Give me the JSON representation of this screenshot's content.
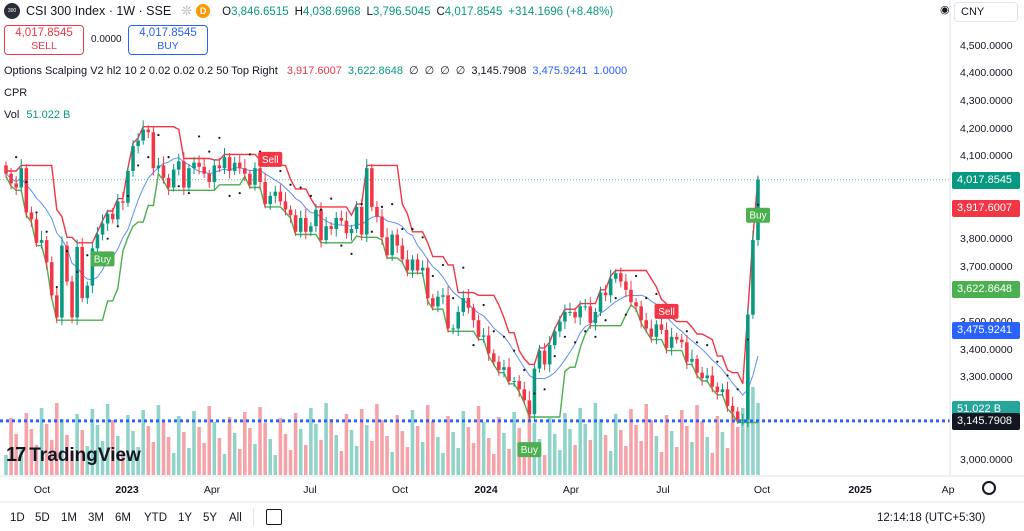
{
  "header": {
    "logo_text": "300",
    "title": "CSI 300 Index · 1W · SSE",
    "flag_glyph": "❊",
    "d_badge": "D",
    "ohlc": [
      {
        "k": "O",
        "v": "3,846.6515"
      },
      {
        "k": "H",
        "v": "4,038.6968"
      },
      {
        "k": "L",
        "v": "3,796.5045"
      },
      {
        "k": "C",
        "v": "4,017.8545"
      },
      {
        "k": "",
        "v": "+314.1696 (+8.48%)"
      }
    ]
  },
  "trade": {
    "sell_price": "4,017.8545",
    "sell_label": "SELL",
    "spread": "0.0000",
    "buy_price": "4,017.8545",
    "buy_label": "BUY"
  },
  "indicators": {
    "scalping_name": "Options Scalping V2 hl2 10 2 0.02 0.02 0.2 50 Top Right",
    "scalping_values": [
      {
        "v": "3,917.6007",
        "color": "#f23645"
      },
      {
        "v": "3,622.8648",
        "color": "#089981"
      },
      {
        "v": "∅",
        "color": "#131722"
      },
      {
        "v": "∅",
        "color": "#131722"
      },
      {
        "v": "∅",
        "color": "#131722"
      },
      {
        "v": "∅",
        "color": "#131722"
      },
      {
        "v": "3,145.7908",
        "color": "#131722"
      },
      {
        "v": "3,475.9241",
        "color": "#2962ff"
      },
      {
        "v": "1.0000",
        "color": "#2962ff"
      }
    ],
    "cpr_label": "CPR",
    "vol_label": "Vol",
    "vol_value": "51.022 B"
  },
  "currency": "CNY",
  "eye_glyph": "◉",
  "y_axis": {
    "min": 2950,
    "max": 4560,
    "ticks": [
      "4,500.0000",
      "4,400.0000",
      "4,300.0000",
      "4,200.0000",
      "4,100.0000",
      "3,900.0000",
      "3,800.0000",
      "3,700.0000",
      "3,500.0000",
      "3,400.0000",
      "3,300.0000",
      "3,200.0000",
      "3,000.0000"
    ],
    "tick_values": [
      4500,
      4400,
      4300,
      4200,
      4100,
      3900,
      3800,
      3700,
      3500,
      3400,
      3300,
      3200,
      3000
    ]
  },
  "price_tags": [
    {
      "label": "4,017.8545",
      "value": 4017.85,
      "bg": "#089981"
    },
    {
      "label": "3,917.6007",
      "value": 3917.6,
      "bg": "#f23645"
    },
    {
      "label": "3,622.8648",
      "value": 3622.86,
      "bg": "#4caf50"
    },
    {
      "label": "3,475.9241",
      "value": 3475.92,
      "bg": "#2962ff"
    },
    {
      "label": "51.022 B",
      "value": 3190,
      "bg": "#26a69a"
    },
    {
      "label": "3,145.7908",
      "value": 3145.79,
      "bg": "#131722"
    }
  ],
  "x_axis": [
    {
      "label": "Oct",
      "bold": false
    },
    {
      "label": "2023",
      "bold": true
    },
    {
      "label": "Apr",
      "bold": false
    },
    {
      "label": "Jul",
      "bold": false
    },
    {
      "label": "Oct",
      "bold": false
    },
    {
      "label": "2024",
      "bold": true
    },
    {
      "label": "Apr",
      "bold": false
    },
    {
      "label": "Jul",
      "bold": false
    },
    {
      "label": "Oct",
      "bold": false
    },
    {
      "label": "2025",
      "bold": true
    },
    {
      "label": "Ap",
      "bold": false
    }
  ],
  "signals": [
    {
      "type": "Buy",
      "bar": 19
    },
    {
      "type": "Sell",
      "bar": 52
    },
    {
      "type": "Buy",
      "bar": 103
    },
    {
      "type": "Sell",
      "bar": 130
    },
    {
      "type": "Buy",
      "bar": 148
    }
  ],
  "timeframes": [
    "1D",
    "5D",
    "1M",
    "3M",
    "6M",
    "YTD",
    "1Y",
    "5Y",
    "All"
  ],
  "clock": "12:14:18 (UTC+5:30)",
  "brand": "TradingView",
  "colors": {
    "up": "#089981",
    "down": "#f23645",
    "vol_up": "#8fd3c9",
    "vol_down": "#f5a3a8",
    "ma": "#5b8ff9",
    "sar": "#131722",
    "bear_band": "#f23645",
    "bull_band": "#4caf50"
  },
  "chart_data": {
    "type": "candlestick",
    "title": "CSI 300 Index · 1W · SSE",
    "x": "weekly bars, Sep 2022 – Sep 2024",
    "closes": [
      4040,
      4005,
      3990,
      4060,
      3900,
      3875,
      3790,
      3800,
      3720,
      3600,
      3520,
      3780,
      3650,
      3520,
      3775,
      3590,
      3635,
      3770,
      3820,
      3860,
      3895,
      3875,
      3940,
      3935,
      4050,
      4140,
      4160,
      4200,
      4190,
      4060,
      4070,
      4025,
      3990,
      4055,
      4085,
      3990,
      4060,
      4080,
      4065,
      4040,
      4010,
      4070,
      4060,
      4100,
      4050,
      4080,
      4060,
      4040,
      4000,
      4060,
      4010,
      3930,
      3960,
      3975,
      3940,
      3910,
      3890,
      3830,
      3880,
      3830,
      3850,
      3910,
      3800,
      3850,
      3840,
      3880,
      3870,
      3825,
      3840,
      3920,
      3820,
      4060,
      3920,
      3885,
      3810,
      3745,
      3820,
      3780,
      3730,
      3690,
      3730,
      3690,
      3700,
      3590,
      3560,
      3595,
      3600,
      3480,
      3480,
      3540,
      3590,
      3555,
      3510,
      3450,
      3455,
      3390,
      3360,
      3330,
      3340,
      3290,
      3290,
      3260,
      3220,
      3170,
      3335,
      3400,
      3350,
      3420,
      3470,
      3505,
      3540,
      3540,
      3520,
      3560,
      3560,
      3500,
      3540,
      3610,
      3600,
      3660,
      3680,
      3650,
      3620,
      3575,
      3560,
      3510,
      3480,
      3450,
      3495,
      3475,
      3410,
      3450,
      3440,
      3430,
      3360,
      3370,
      3320,
      3300,
      3310,
      3270,
      3250,
      3260,
      3200,
      3180,
      3150,
      3150,
      3530,
      3800,
      4018
    ],
    "ylim": [
      2950,
      4560
    ]
  }
}
